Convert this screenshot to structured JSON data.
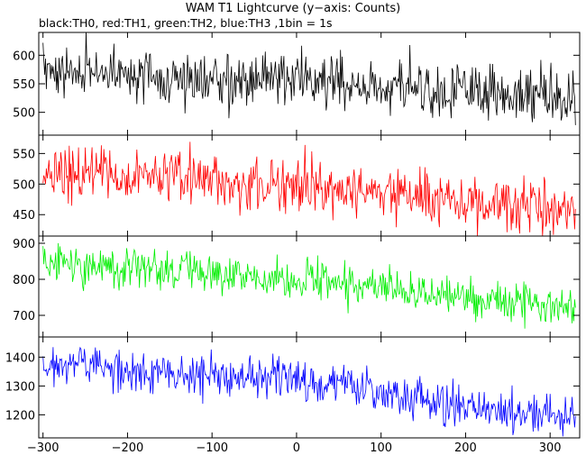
{
  "title": "WAM T1 Lightcurve (y−axis: Counts)",
  "subtitle": "black:TH0, red:TH1, green:TH2, blue:TH3 ,1bin = 1s",
  "chart_data": {
    "type": "line",
    "x_range": [
      -305,
      335
    ],
    "x_ticks": [
      -300,
      -200,
      -100,
      0,
      100,
      200,
      300
    ],
    "x_tick_labels": [
      "−300",
      "−200",
      "−100",
      "0",
      "100",
      "200",
      "300"
    ],
    "bin_seconds": 1,
    "grid": false,
    "panels": [
      {
        "color": "#000000",
        "ylim": [
          460,
          640
        ],
        "y_ticks": [
          500,
          550,
          600
        ],
        "trend": {
          "x": [
            -300,
            0,
            330
          ],
          "y": [
            575,
            555,
            525
          ]
        },
        "noise_sigma": 24
      },
      {
        "color": "#ff0000",
        "ylim": [
          415,
          580
        ],
        "y_ticks": [
          450,
          500,
          550
        ],
        "trend": {
          "x": [
            -300,
            0,
            330
          ],
          "y": [
            520,
            500,
            455
          ]
        },
        "noise_sigma": 22
      },
      {
        "color": "#00ee00",
        "ylim": [
          640,
          920
        ],
        "y_ticks": [
          700,
          800,
          900
        ],
        "trend": {
          "x": [
            -300,
            0,
            330
          ],
          "y": [
            850,
            800,
            715
          ]
        },
        "noise_sigma": 28
      },
      {
        "color": "#0000ff",
        "ylim": [
          1120,
          1470
        ],
        "y_ticks": [
          1200,
          1300,
          1400
        ],
        "trend": {
          "x": [
            -300,
            0,
            330
          ],
          "y": [
            1375,
            1320,
            1180
          ]
        },
        "noise_sigma": 35
      }
    ]
  }
}
